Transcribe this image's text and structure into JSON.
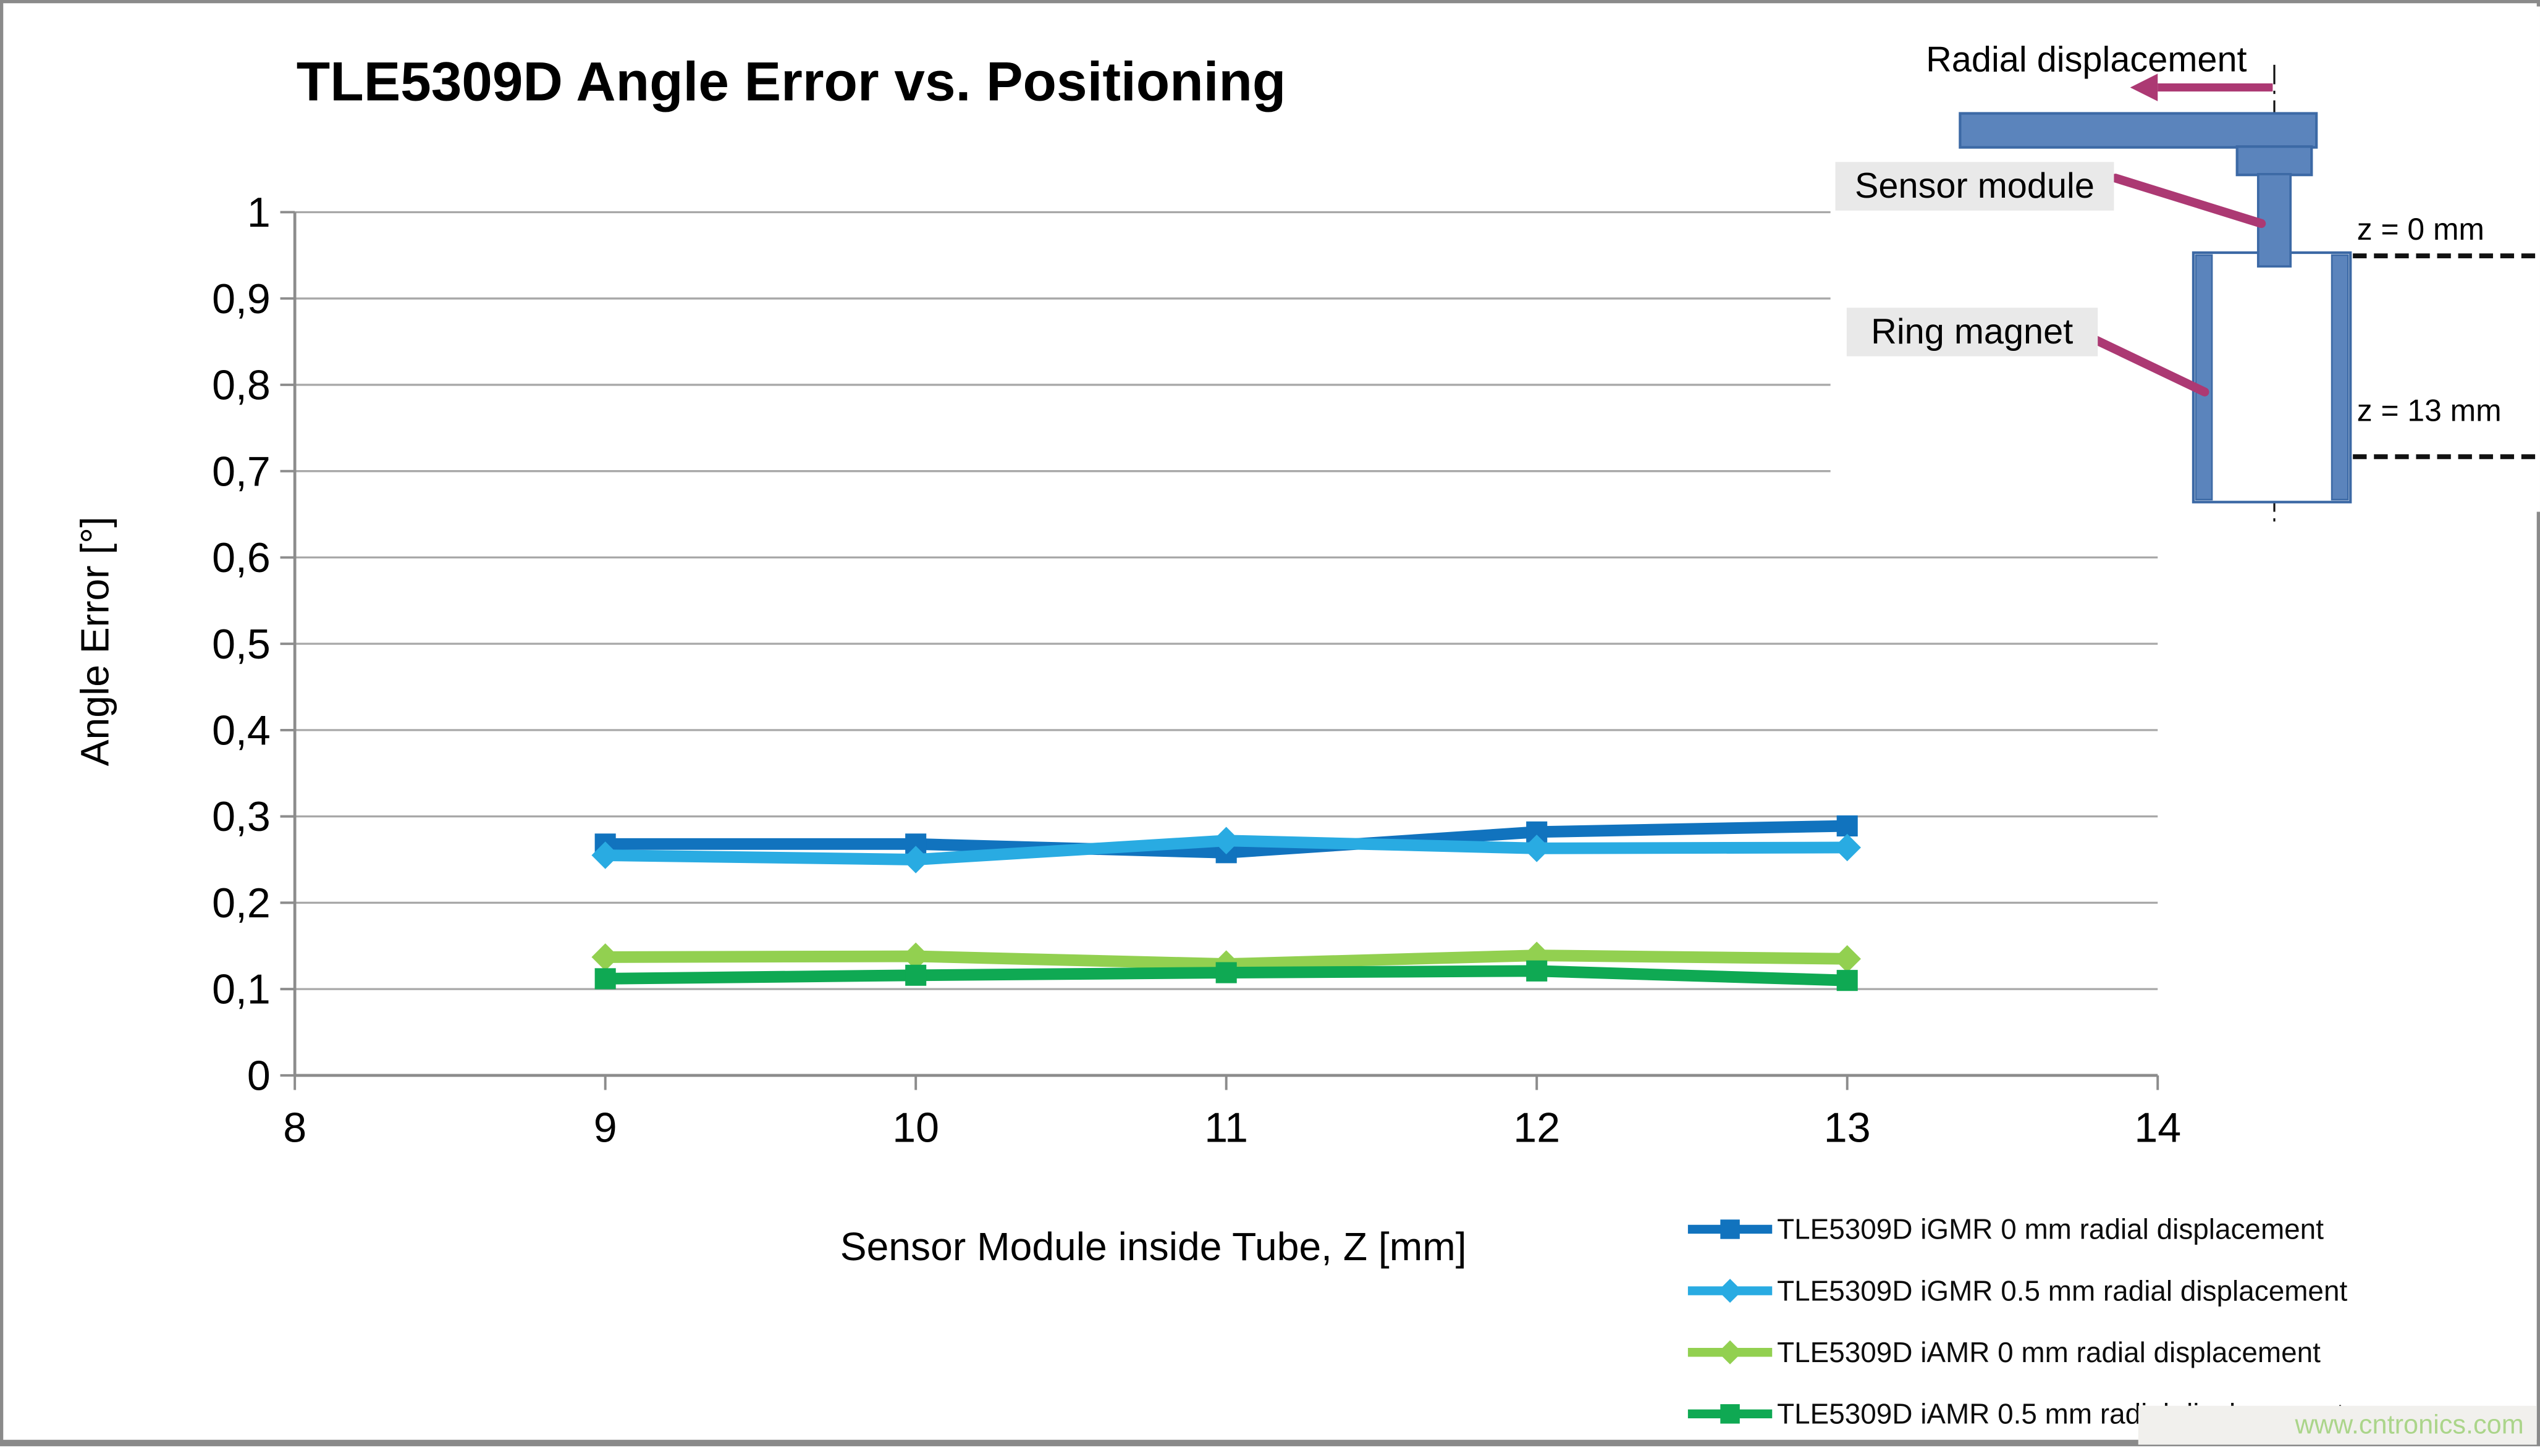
{
  "window": {
    "frame_color": "#8a8a8a",
    "background": "#ffffff"
  },
  "watermark": "www.cntronics.com",
  "chart_data": {
    "type": "line",
    "title": "TLE5309D Angle Error vs. Positioning",
    "xlabel": "Sensor Module inside Tube, Z [mm]",
    "ylabel": "Angle Error [°]",
    "xlim": [
      8,
      14
    ],
    "ylim": [
      0,
      1
    ],
    "grid": true,
    "legend_position": "bottom-right",
    "colors": {
      "gridline": "#A8A8A8",
      "axis": "#8C8C8C",
      "text": "#000000"
    },
    "x_ticks": [
      {
        "value": 8,
        "label": "8"
      },
      {
        "value": 9,
        "label": "9"
      },
      {
        "value": 10,
        "label": "10"
      },
      {
        "value": 11,
        "label": "11"
      },
      {
        "value": 12,
        "label": "12"
      },
      {
        "value": 13,
        "label": "13"
      },
      {
        "value": 14,
        "label": "14"
      }
    ],
    "y_ticks": [
      {
        "value": 1,
        "label": "1"
      },
      {
        "value": 0.9,
        "label": "0,9"
      },
      {
        "value": 0.8,
        "label": "0,8"
      },
      {
        "value": 0.7,
        "label": "0,7"
      },
      {
        "value": 0.6,
        "label": "0,6"
      },
      {
        "value": 0.5,
        "label": "0,5"
      },
      {
        "value": 0.4,
        "label": "0,4"
      },
      {
        "value": 0.3,
        "label": "0,3"
      },
      {
        "value": 0.2,
        "label": "0,2"
      },
      {
        "value": 0.1,
        "label": "0,1"
      },
      {
        "value": 0,
        "label": "0"
      }
    ],
    "x": [
      9,
      10,
      11,
      12,
      13
    ],
    "series": [
      {
        "name": "TLE5309D iGMR 0 mm radial displacement",
        "color": "#1173BE",
        "marker": "square",
        "values": [
          0.268,
          0.268,
          0.258,
          0.282,
          0.289
        ]
      },
      {
        "name": "TLE5309D iGMR 0.5 mm radial displacement",
        "color": "#29ABE2",
        "marker": "diamond",
        "values": [
          0.255,
          0.25,
          0.272,
          0.263,
          0.264
        ]
      },
      {
        "name": "TLE5309D iAMR 0 mm radial displacement",
        "color": "#92D050",
        "marker": "diamond",
        "values": [
          0.137,
          0.138,
          0.129,
          0.139,
          0.135
        ]
      },
      {
        "name": "TLE5309D iAMR 0.5 mm radial displacement",
        "color": "#0FA953",
        "marker": "square",
        "values": [
          0.112,
          0.116,
          0.119,
          0.121,
          0.11
        ]
      }
    ]
  },
  "inset": {
    "radial_label": "Radial displacement",
    "sensor_label": "Sensor module",
    "ring_label": "Ring magnet",
    "z0_label": "z = 0 mm",
    "z13_label": "z = 13 mm",
    "colors": {
      "blue_fill": "#5B84BC",
      "blue_stroke": "#3C69A5",
      "magenta": "#AC3973",
      "label_bg": "#E9E9E9",
      "dash": "#111111"
    }
  }
}
